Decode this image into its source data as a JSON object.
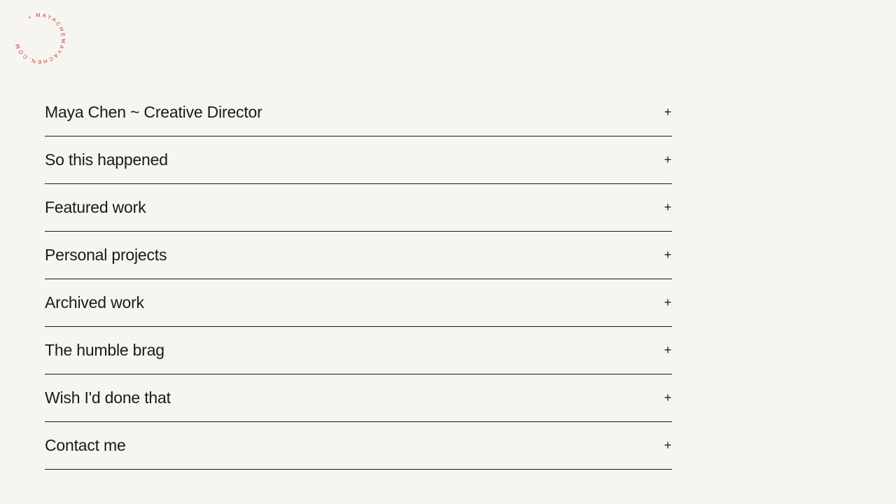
{
  "logo": {
    "text": "• MAYACHEMAYACHEN.COM",
    "color": "#d0312d"
  },
  "menu": {
    "items": [
      {
        "label": "Maya Chen ~ Creative Director",
        "icon": "plus-icon"
      },
      {
        "label": "So this happened",
        "icon": "plus-icon"
      },
      {
        "label": "Featured work",
        "icon": "plus-icon"
      },
      {
        "label": "Personal projects",
        "icon": "plus-icon"
      },
      {
        "label": "Archived work",
        "icon": "plus-icon"
      },
      {
        "label": "The humble brag",
        "icon": "plus-icon"
      },
      {
        "label": "Wish I'd done that",
        "icon": "plus-icon"
      },
      {
        "label": "Contact me",
        "icon": "plus-icon"
      }
    ],
    "expand_symbol": "+"
  }
}
